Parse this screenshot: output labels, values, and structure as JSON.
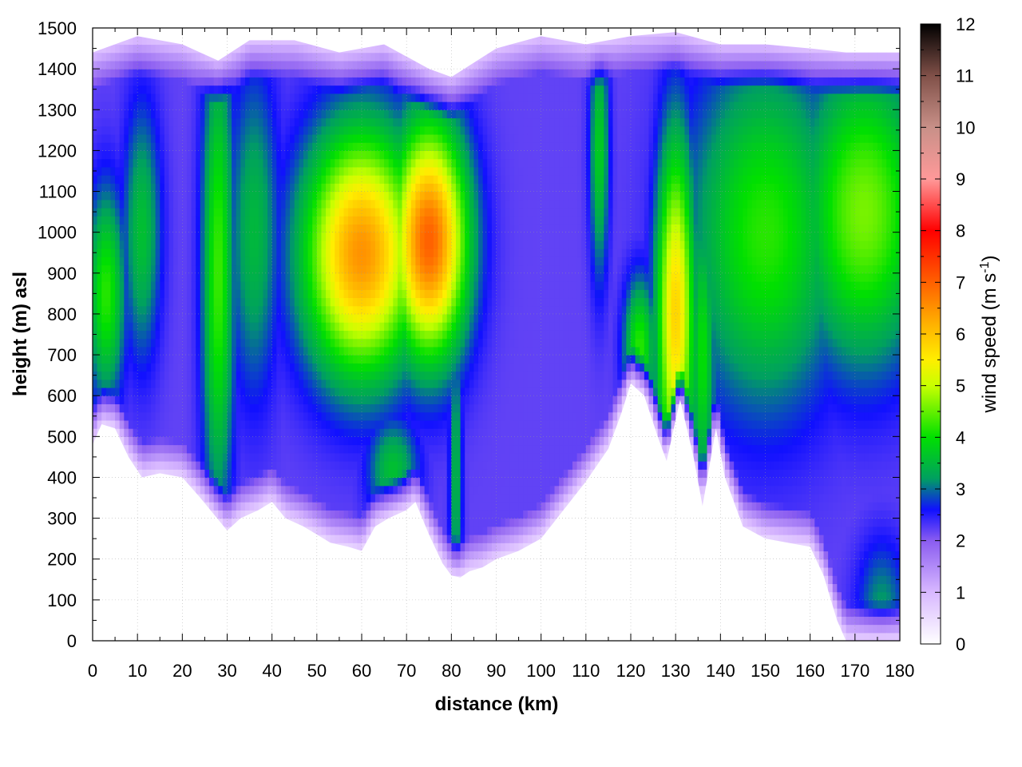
{
  "chart_data": {
    "type": "heatmap",
    "title": "",
    "xlabel": "distance (km)",
    "ylabel": "height (m) asl",
    "colorbar_label": "wind speed (m s",
    "colorbar_label_sup": "-1",
    "colorbar_label_end": ")",
    "xlim": [
      0,
      180
    ],
    "ylim": [
      0,
      1500
    ],
    "zlim": [
      0,
      12
    ],
    "x_ticks": [
      "0",
      "10",
      "20",
      "30",
      "40",
      "50",
      "60",
      "70",
      "80",
      "90",
      "100",
      "110",
      "120",
      "130",
      "140",
      "150",
      "160",
      "170",
      "180"
    ],
    "y_ticks": [
      "0",
      "100",
      "200",
      "300",
      "400",
      "500",
      "600",
      "700",
      "800",
      "900",
      "1000",
      "1100",
      "1200",
      "1300",
      "1400",
      "1500"
    ],
    "z_ticks": [
      "0",
      "1",
      "2",
      "3",
      "4",
      "5",
      "6",
      "7",
      "8",
      "9",
      "10",
      "11",
      "12"
    ],
    "grid": true,
    "colormap": [
      {
        "v": 0,
        "color": "#ffffff"
      },
      {
        "v": 1,
        "color": "#d8b8ff"
      },
      {
        "v": 2,
        "color": "#8a5cf0"
      },
      {
        "v": 2.6,
        "color": "#1010ff"
      },
      {
        "v": 3.2,
        "color": "#00a060"
      },
      {
        "v": 4,
        "color": "#00e000"
      },
      {
        "v": 5,
        "color": "#c8ff00"
      },
      {
        "v": 5.5,
        "color": "#ffee00"
      },
      {
        "v": 6.2,
        "color": "#ffb000"
      },
      {
        "v": 7,
        "color": "#ff6000"
      },
      {
        "v": 8,
        "color": "#ff0000"
      },
      {
        "v": 9,
        "color": "#ff9999"
      },
      {
        "v": 10,
        "color": "#c89088"
      },
      {
        "v": 11,
        "color": "#805048"
      },
      {
        "v": 12,
        "color": "#000000"
      }
    ],
    "terrain": [
      [
        0,
        480
      ],
      [
        2,
        530
      ],
      [
        5,
        520
      ],
      [
        8,
        450
      ],
      [
        11,
        400
      ],
      [
        15,
        410
      ],
      [
        20,
        400
      ],
      [
        24,
        350
      ],
      [
        27,
        310
      ],
      [
        30,
        270
      ],
      [
        33,
        300
      ],
      [
        37,
        320
      ],
      [
        40,
        340
      ],
      [
        43,
        300
      ],
      [
        47,
        280
      ],
      [
        50,
        260
      ],
      [
        53,
        240
      ],
      [
        57,
        230
      ],
      [
        60,
        220
      ],
      [
        63,
        280
      ],
      [
        66,
        300
      ],
      [
        70,
        320
      ],
      [
        72,
        340
      ],
      [
        75,
        260
      ],
      [
        78,
        190
      ],
      [
        80,
        160
      ],
      [
        82,
        155
      ],
      [
        84,
        170
      ],
      [
        87,
        180
      ],
      [
        90,
        200
      ],
      [
        95,
        220
      ],
      [
        100,
        250
      ],
      [
        105,
        320
      ],
      [
        110,
        390
      ],
      [
        115,
        470
      ],
      [
        118,
        560
      ],
      [
        120,
        630
      ],
      [
        123,
        600
      ],
      [
        126,
        500
      ],
      [
        128,
        440
      ],
      [
        131,
        590
      ],
      [
        134,
        450
      ],
      [
        136,
        330
      ],
      [
        139,
        520
      ],
      [
        141,
        400
      ],
      [
        145,
        280
      ],
      [
        150,
        250
      ],
      [
        155,
        240
      ],
      [
        160,
        230
      ],
      [
        163,
        160
      ],
      [
        166,
        50
      ],
      [
        168,
        0
      ],
      [
        180,
        0
      ]
    ],
    "top_boundary": [
      [
        0,
        1440
      ],
      [
        10,
        1480
      ],
      [
        20,
        1460
      ],
      [
        28,
        1420
      ],
      [
        35,
        1470
      ],
      [
        45,
        1470
      ],
      [
        55,
        1440
      ],
      [
        65,
        1460
      ],
      [
        75,
        1400
      ],
      [
        80,
        1380
      ],
      [
        90,
        1450
      ],
      [
        100,
        1480
      ],
      [
        110,
        1460
      ],
      [
        120,
        1480
      ],
      [
        130,
        1490
      ],
      [
        140,
        1460
      ],
      [
        150,
        1460
      ],
      [
        160,
        1450
      ],
      [
        168,
        1440
      ],
      [
        180,
        1440
      ]
    ],
    "wind_features": [
      {
        "x": 3,
        "y": 850,
        "peak": 4.2,
        "sx": 3,
        "sy": 180
      },
      {
        "x": 11,
        "y": 1000,
        "peak": 3.6,
        "sx": 3,
        "sy": 220
      },
      {
        "x": 28,
        "y": 900,
        "peak": 4.3,
        "sx": 2.5,
        "sy": 400
      },
      {
        "x": 36,
        "y": 1000,
        "peak": 3.5,
        "sx": 4,
        "sy": 280
      },
      {
        "x": 60,
        "y": 950,
        "peak": 6.5,
        "sx": 9,
        "sy": 210
      },
      {
        "x": 75,
        "y": 980,
        "peak": 7.0,
        "sx": 6,
        "sy": 200
      },
      {
        "x": 67,
        "y": 420,
        "peak": 3.6,
        "sx": 4,
        "sy": 90
      },
      {
        "x": 81,
        "y": 400,
        "peak": 3.5,
        "sx": 1,
        "sy": 250
      },
      {
        "x": 113,
        "y": 1200,
        "peak": 3.8,
        "sx": 1.5,
        "sy": 220
      },
      {
        "x": 130,
        "y": 800,
        "peak": 5.8,
        "sx": 3,
        "sy": 300
      },
      {
        "x": 122,
        "y": 720,
        "peak": 4.2,
        "sx": 2.5,
        "sy": 120
      },
      {
        "x": 136,
        "y": 700,
        "peak": 4.0,
        "sx": 2,
        "sy": 260
      },
      {
        "x": 150,
        "y": 1000,
        "peak": 4.2,
        "sx": 12,
        "sy": 300
      },
      {
        "x": 172,
        "y": 1050,
        "peak": 4.6,
        "sx": 10,
        "sy": 260
      },
      {
        "x": 176,
        "y": 80,
        "peak": 3.2,
        "sx": 4,
        "sy": 120
      }
    ],
    "background_speed": 2.2
  }
}
